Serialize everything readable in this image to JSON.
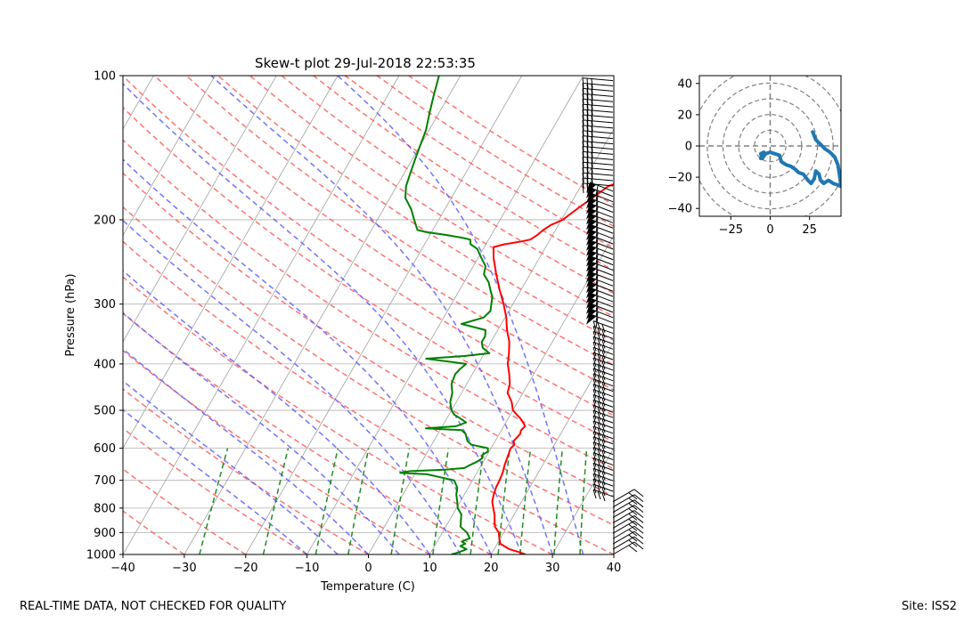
{
  "chart_data": [
    {
      "type": "line",
      "subtype": "skew-t log-p diagram",
      "title": "Skew-t plot 29-Jul-2018 22:53:35",
      "xlabel": "Temperature (C)",
      "ylabel": "Pressure (hPa)",
      "xlim": [
        -40,
        40
      ],
      "ylim": [
        1000,
        100
      ],
      "x_ticks": [
        -40,
        -30,
        -20,
        -10,
        0,
        10,
        20,
        30,
        40
      ],
      "y_ticks": [
        100,
        200,
        300,
        400,
        500,
        600,
        700,
        800,
        900,
        1000
      ],
      "grid": true,
      "series": [
        {
          "name": "Temperature",
          "color": "#ff0000",
          "points": [
            [
              1000,
              25.6
            ],
            [
              990,
              24.5
            ],
            [
              975,
              22.5
            ],
            [
              950,
              20.5
            ],
            [
              925,
              19.8
            ],
            [
              900,
              19.2
            ],
            [
              875,
              18.0
            ],
            [
              850,
              17.4
            ],
            [
              825,
              16.8
            ],
            [
              800,
              16.0
            ],
            [
              775,
              15.2
            ],
            [
              750,
              14.8
            ],
            [
              725,
              14.5
            ],
            [
              700,
              14.4
            ],
            [
              675,
              14.2
            ],
            [
              650,
              13.8
            ],
            [
              625,
              13.5
            ],
            [
              600,
              13.2
            ],
            [
              590,
              13.5
            ],
            [
              580,
              13.0
            ],
            [
              570,
              13.2
            ],
            [
              560,
              13.4
            ],
            [
              550,
              13.2
            ],
            [
              540,
              13.5
            ],
            [
              530,
              12.8
            ],
            [
              520,
              12.0
            ],
            [
              510,
              11.0
            ],
            [
              500,
              10.0
            ],
            [
              480,
              9.0
            ],
            [
              460,
              7.5
            ],
            [
              440,
              7.0
            ],
            [
              420,
              6.0
            ],
            [
              400,
              4.8
            ],
            [
              380,
              4.0
            ],
            [
              360,
              3.0
            ],
            [
              340,
              1.5
            ],
            [
              320,
              0.2
            ],
            [
              300,
              -1.5
            ],
            [
              280,
              -3.5
            ],
            [
              260,
              -5.5
            ],
            [
              240,
              -7.5
            ],
            [
              228,
              -8.5
            ],
            [
              225,
              -7.0
            ],
            [
              222,
              -4.5
            ],
            [
              220,
              -3.2
            ],
            [
              215,
              -2.5
            ],
            [
              210,
              -2.0
            ],
            [
              205,
              -1.2
            ],
            [
              200,
              0.2
            ],
            [
              190,
              1.5
            ],
            [
              180,
              3.0
            ],
            [
              170,
              4.5
            ],
            [
              165,
              7.0
            ],
            [
              160,
              9.0
            ],
            [
              155,
              10.5
            ],
            [
              150,
              11.0
            ],
            [
              140,
              12.5
            ],
            [
              130,
              13.5
            ],
            [
              120,
              15.0
            ],
            [
              115,
              17.5
            ],
            [
              110,
              19.5
            ],
            [
              105,
              20.5
            ],
            [
              100,
              21.5
            ]
          ]
        },
        {
          "name": "Dewpoint",
          "color": "#008000",
          "points": [
            [
              1000,
              13.5
            ],
            [
              990,
              14.5
            ],
            [
              975,
              15.5
            ],
            [
              960,
              14.2
            ],
            [
              950,
              14.8
            ],
            [
              940,
              14.0
            ],
            [
              925,
              15.0
            ],
            [
              900,
              14.0
            ],
            [
              875,
              12.4
            ],
            [
              850,
              11.9
            ],
            [
              825,
              11.4
            ],
            [
              800,
              10.2
            ],
            [
              775,
              9.5
            ],
            [
              750,
              8.7
            ],
            [
              725,
              8.2
            ],
            [
              700,
              7.0
            ],
            [
              690,
              4.5
            ],
            [
              680,
              2.0
            ],
            [
              675,
              -2.5
            ],
            [
              670,
              -1.0
            ],
            [
              665,
              4.5
            ],
            [
              660,
              7.5
            ],
            [
              650,
              8.2
            ],
            [
              640,
              9.0
            ],
            [
              630,
              9.5
            ],
            [
              620,
              9.2
            ],
            [
              610,
              9.8
            ],
            [
              600,
              9.5
            ],
            [
              590,
              6.5
            ],
            [
              580,
              5.5
            ],
            [
              570,
              5.0
            ],
            [
              560,
              4.5
            ],
            [
              550,
              3.5
            ],
            [
              545,
              -2.5
            ],
            [
              540,
              2.2
            ],
            [
              530,
              3.5
            ],
            [
              520,
              2.2
            ],
            [
              510,
              0.8
            ],
            [
              500,
              0.0
            ],
            [
              480,
              -1.0
            ],
            [
              460,
              -1.5
            ],
            [
              440,
              -2.5
            ],
            [
              420,
              -2.8
            ],
            [
              410,
              -2.5
            ],
            [
              400,
              -2.0
            ],
            [
              390,
              -9.0
            ],
            [
              385,
              -3.0
            ],
            [
              380,
              0.8
            ],
            [
              370,
              -0.8
            ],
            [
              360,
              -1.5
            ],
            [
              350,
              -1.5
            ],
            [
              340,
              -2.0
            ],
            [
              330,
              -6.5
            ],
            [
              320,
              -3.5
            ],
            [
              310,
              -3.0
            ],
            [
              300,
              -3.5
            ],
            [
              290,
              -4.0
            ],
            [
              280,
              -5.0
            ],
            [
              270,
              -6.0
            ],
            [
              260,
              -7.5
            ],
            [
              250,
              -8.0
            ],
            [
              240,
              -9.5
            ],
            [
              230,
              -11.0
            ],
            [
              225,
              -12.5
            ],
            [
              220,
              -13.0
            ],
            [
              218,
              -14.5
            ],
            [
              215,
              -17.5
            ],
            [
              212,
              -21.0
            ],
            [
              210,
              -22.5
            ],
            [
              200,
              -24.0
            ],
            [
              190,
              -25.5
            ],
            [
              180,
              -27.5
            ],
            [
              170,
              -28.5
            ],
            [
              160,
              -29.0
            ],
            [
              150,
              -29.5
            ],
            [
              140,
              -30.0
            ],
            [
              130,
              -30.5
            ],
            [
              120,
              -31.5
            ],
            [
              110,
              -32.5
            ],
            [
              100,
              -33.5
            ]
          ]
        }
      ],
      "background_lines": {
        "dry_adiabats_color": "#ff5a5a",
        "moist_adiabats_color": "#5a5aff",
        "mixing_ratio_color": "#228b22",
        "isotherms_color": "#a0a0a0"
      },
      "wind_barbs": "present along right edge"
    },
    {
      "type": "line",
      "subtype": "hodograph",
      "xlim": [
        -45,
        45
      ],
      "ylim": [
        -45,
        45
      ],
      "x_ticks": [
        -25,
        0,
        25
      ],
      "y_ticks": [
        40,
        20,
        0,
        -20,
        -40
      ],
      "rings": [
        10,
        20,
        30,
        40,
        50
      ],
      "series": [
        {
          "name": "Wind",
          "color": "#1f77b4",
          "points": [
            [
              -6,
              -8
            ],
            [
              -5,
              -6
            ],
            [
              -4,
              -4
            ],
            [
              -6,
              -5
            ],
            [
              -5,
              -8
            ],
            [
              -3,
              -5
            ],
            [
              0,
              -4
            ],
            [
              3,
              -5
            ],
            [
              6,
              -6
            ],
            [
              7,
              -10
            ],
            [
              10,
              -12
            ],
            [
              13,
              -13
            ],
            [
              16,
              -15
            ],
            [
              18,
              -17
            ],
            [
              21,
              -18
            ],
            [
              24,
              -22
            ],
            [
              26,
              -24
            ],
            [
              28,
              -21
            ],
            [
              29,
              -16
            ],
            [
              31,
              -18
            ],
            [
              32,
              -22
            ],
            [
              34,
              -24
            ],
            [
              37,
              -22
            ],
            [
              40,
              -24
            ],
            [
              43,
              -25
            ],
            [
              45,
              -26
            ],
            [
              44,
              -18
            ],
            [
              43,
              -12
            ],
            [
              41,
              -7
            ],
            [
              38,
              -4
            ],
            [
              35,
              -2
            ],
            [
              32,
              1
            ],
            [
              29,
              4
            ],
            [
              27,
              9
            ]
          ]
        }
      ]
    }
  ],
  "footer": {
    "left": "REAL-TIME DATA, NOT CHECKED FOR QUALITY",
    "right": "Site: ISS2"
  }
}
